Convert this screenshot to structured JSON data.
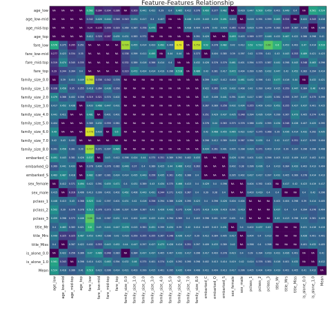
{
  "chart_data": {
    "type": "heatmap",
    "title": "Feature-Features Relationship",
    "rows": [
      "age_low",
      "age_low-mid",
      "age_mid-top",
      "age_top",
      "fare_low",
      "fare_low-mid",
      "fare_mid-top",
      "fare_top",
      "family_size_0.0",
      "family_size_1.0",
      "family_size_2.0",
      "family_size_3.0",
      "family_size_4.0",
      "family_size_5.0",
      "family_size_6.0",
      "family_size_7.0",
      "family_size_8.0",
      "embarked_C",
      "embarked_Q",
      "embarked_S",
      "sex_female",
      "sex_male",
      "pclass_1",
      "pclass_2",
      "pclass_3",
      "title_Mr",
      "title_Mrs",
      "title_Miss",
      "is_alone_0.0",
      "is_alone_1.0",
      "Mean"
    ],
    "columns": [
      "age_low",
      "age_low-mid",
      "age_mid-top",
      "age_top",
      "fare_low",
      "fare_low-mid",
      "fare_mid-top",
      "fare_top",
      "family_size_0.0",
      "family_size_1.0",
      "family_size_2.0",
      "family_size_3.0",
      "family_size_4.0",
      "family_size_5.0",
      "family_size_6.0",
      "family_size_7.0",
      "family_size_8.0",
      "embarked_C",
      "embarked_Q",
      "embarked_S",
      "sex_female",
      "sex_male",
      "pclass_1",
      "pclass_2",
      "pclass_3",
      "title_Mr",
      "title_Mrs",
      "title_Miss",
      "is_alone_0.0",
      "is_alone_1.0",
      "Mean"
    ],
    "row_tick_labels": [
      "age_low",
      "age_low-mid",
      "age_mid-top",
      "age_top",
      "fare_low",
      "fare_low-mid",
      "fare_mid-top",
      "fare_top",
      "family_size_0.0",
      "family_size_1.0",
      "family_size_2.0",
      "family_size_3.0",
      "family_size_4.0",
      "family_size_5.0",
      "family_size_6.0",
      "family_size_7.0",
      "family_size_8.0",
      "embarked_C",
      "embarked_Q",
      "embarked_S",
      "sex_female",
      "sex_male",
      "pclass_1",
      "pclass_2",
      "pclass_3",
      "title_Mr",
      "title_Mrs",
      "title_Miss",
      "is_alone_0.0",
      "is_alone_1.0",
      "Mean"
    ],
    "col_tick_labels": [
      "age_low",
      "age_low-mid",
      "age_mid-top",
      "age_top",
      "fare_low",
      "fare_low-mid",
      "fare_mid-top",
      "fare_top",
      "family_size_0.0",
      "family_size_1.0",
      "family_size_2.0",
      "family_size_3.0",
      "family_size_4.0",
      "family_size_5.0",
      "family_size_6.0",
      "family_size_7.0",
      "family_size_8.0",
      "embarked_C",
      "embarked_Q",
      "embarked_S",
      "sex_female",
      "sex_male",
      "pclass_1",
      "pclass_2",
      "pclass_3",
      "title_Mr",
      "title_Mrs",
      "title_Miss",
      "is_alone_0.0",
      "is_alone_1.0",
      "Mean"
    ],
    "colormap": "viridis",
    "value_range": [
      0,
      1
    ],
    "na_label": "NA",
    "values": [
      [
        "NA",
        "NA",
        "NA",
        "NA",
        0.562,
        0.284,
        0.304,
        0.286,
        "NA",
        0.303,
        0.441,
        0.422,
        0.39,
        0.4,
        0.465,
        0.412,
        0.376,
        0.493,
        0.377,
        0.462,
        "NA",
        0.416,
        0.447,
        0.503,
        0.459,
        0.401,
        0.449,
        0.4,
        "NA",
        0.561,
        0.524
      ],
      [
        "NA",
        "NA",
        "NA",
        "NA",
        0.342,
        0.426,
        0.444,
        0.346,
        0.343,
        0.431,
        0.417,
        0.4,
        0.407,
        "NA",
        "NA",
        0.446,
        0.435,
        0.443,
        0.439,
        0.491,
        0.403,
        "NA",
        0.416,
        0.391,
        0.399,
        0.463,
        0.324,
        "NA",
        0.422,
        0.343,
        0.418
      ],
      [
        "NA",
        "NA",
        "NA",
        "NA",
        0.24,
        0.235,
        0.309,
        0.329,
        0.369,
        0.387,
        0.358,
        0.475,
        "NA",
        "NA",
        "NA",
        0.418,
        0.404,
        0.376,
        0.43,
        0.424,
        0.365,
        0.318,
        0.429,
        0.376,
        0.374,
        0.383,
        0.325,
        0.387,
        0.356,
        "NA",
        0.386
      ],
      [
        "NA",
        "NA",
        "NA",
        "NA",
        0.412,
        0.329,
        0.287,
        0.435,
        0.431,
        0.383,
        0.372,
        "NA",
        "NA",
        "NA",
        "NA",
        "NA",
        0.391,
        0.429,
        "NA",
        "NA",
        0.493,
        0.403,
        0.369,
        0.377,
        0.446,
        0.422,
        0.467,
        0.422,
        0.386,
        0.398,
        0.41
      ],
      [
        0.576,
        0.375,
        0.265,
        0.351,
        "NA",
        "NA",
        "NA",
        "NA",
        0.735,
        0.455,
        0.414,
        0.423,
        0.492,
        0.406,
        0.79,
        "NA",
        0.759,
        0.52,
        0.378,
        0.482,
        0.42,
        0.412,
        0.52,
        0.513,
        0.66,
        0.6,
        0.453,
        0.402,
        0.47,
        0.414,
        0.519
      ],
      [
        0.277,
        0.423,
        0.334,
        0.35,
        "NA",
        "NA",
        "NA",
        "NA",
        0.338,
        0.399,
        0.411,
        0.495,
        "NA",
        0.44,
        0.44,
        "NA",
        0.373,
        "NA",
        0.404,
        0.385,
        0.39,
        0.397,
        0.42,
        0.376,
        0.41,
        0.43,
        0.443,
        0.353,
        0.489,
        0.421,
        0.423
      ],
      [
        0.319,
        0.474,
        0.345,
        0.335,
        "NA",
        "NA",
        "NA",
        "NA",
        0.332,
        0.389,
        0.416,
        0.366,
        0.414,
        0.4,
        "NA",
        "NA",
        0.432,
        0.426,
        0.376,
        0.379,
        0.461,
        0.401,
        0.394,
        0.373,
        0.387,
        0.441,
        0.398,
        0.443,
        0.348,
        0.463,
        0.396
      ],
      [
        0.29,
        0.344,
        0.364,
        0.4,
        "NA",
        "NA",
        "NA",
        "NA",
        0.323,
        0.472,
        0.424,
        0.414,
        0.419,
        0.396,
        0.518,
        "NA",
        0.486,
        0.43,
        0.381,
        0.417,
        0.472,
        0.404,
        0.399,
        0.395,
        0.432,
        0.447,
        0.42,
        0.452,
        0.383,
        0.394,
        0.414
      ],
      [
        "NA",
        0.39,
        0.411,
        0.449,
        0.765,
        0.338,
        0.342,
        0.376,
        "NA",
        "NA",
        "NA",
        "NA",
        "NA",
        "NA",
        "NA",
        "NA",
        "NA",
        0.399,
        0.447,
        0.412,
        0.404,
        0.461,
        0.432,
        0.396,
        0.41,
        0.477,
        0.416,
        0.44,
        "NA",
        0.432,
        0.421
      ],
      [
        0.328,
        0.456,
        0.35,
        0.355,
        0.418,
        0.364,
        0.436,
        0.356,
        "NA",
        "NA",
        "NA",
        "NA",
        "NA",
        "NA",
        "NA",
        "NA",
        "NA",
        0.422,
        0.365,
        0.435,
        0.432,
        0.408,
        0.42,
        0.393,
        0.402,
        0.415,
        0.359,
        0.447,
        0.384,
        0.46,
        0.403
      ],
      [
        0.479,
        0.366,
        0.402,
        0.356,
        0.319,
        0.321,
        0.374,
        0.402,
        "NA",
        "NA",
        "NA",
        "NA",
        "NA",
        "NA",
        "NA",
        "NA",
        "NA",
        0.43,
        0.406,
        0.441,
        0.391,
        0.443,
        0.417,
        0.387,
        0.433,
        0.381,
        0.355,
        0.397,
        0.437,
        0.375,
        0.399
      ],
      [
        0.417,
        0.452,
        0.438,
        "NA",
        0.433,
        0.468,
        0.447,
        0.431,
        "NA",
        "NA",
        "NA",
        "NA",
        "NA",
        "NA",
        "NA",
        "NA",
        "NA",
        0.367,
        0.389,
        0.356,
        0.432,
        0.434,
        0.355,
        0.409,
        0.423,
        0.451,
        0.355,
        0.427,
        0.437,
        0.401,
        0.415
      ],
      [
        0.441,
        0.411,
        "NA",
        "NA",
        0.481,
        "NA",
        0.401,
        0.401,
        "NA",
        "NA",
        "NA",
        "NA",
        "NA",
        "NA",
        "NA",
        "NA",
        "NA",
        0.351,
        0.429,
        0.437,
        0.435,
        0.348,
        0.394,
        0.426,
        0.424,
        0.399,
        0.367,
        0.473,
        0.405,
        0.374,
        0.401
      ],
      [
        0.404,
        "NA",
        "NA",
        "NA",
        0.389,
        0.432,
        0.359,
        0.381,
        "NA",
        "NA",
        "NA",
        "NA",
        "NA",
        "NA",
        "NA",
        "NA",
        "NA",
        0.376,
        0.44,
        0.363,
        0.375,
        0.376,
        0.386,
        0.432,
        0.395,
        0.434,
        0.348,
        0.428,
        0.407,
        0.425,
        0.395
      ],
      [
        0.49,
        "NA",
        "NA",
        "NA",
        0.778,
        0.433,
        "NA",
        0.5,
        "NA",
        "NA",
        "NA",
        "NA",
        "NA",
        "NA",
        "NA",
        "NA",
        "NA",
        0.42,
        0.468,
        0.455,
        0.465,
        0.422,
        0.427,
        0.375,
        0.368,
        0.39,
        0.436,
        0.414,
        0.432,
        0.392,
        0.435
      ],
      [
        0.42,
        0.43,
        0.401,
        "NA",
        "NA",
        "NA",
        "NA",
        "NA",
        "NA",
        "NA",
        "NA",
        "NA",
        "NA",
        "NA",
        "NA",
        "NA",
        "NA",
        0.396,
        0.412,
        0.389,
        0.416,
        0.367,
        0.394,
        0.435,
        0.4,
        0.42,
        0.417,
        0.351,
        0.417,
        0.395,
        0.404
      ],
      [
        0.391,
        0.456,
        0.381,
        0.39,
        0.727,
        0.371,
        0.397,
        0.485,
        "NA",
        "NA",
        "NA",
        "NA",
        "NA",
        "NA",
        "NA",
        "NA",
        "NA",
        0.434,
        0.361,
        0.401,
        0.405,
        0.398,
        0.424,
        0.371,
        0.403,
        0.414,
        0.39,
        0.397,
        0.396,
        0.398,
        0.408
      ],
      [
        0.491,
        0.443,
        0.381,
        0.426,
        0.537,
        "NA",
        0.43,
        0.412,
        0.398,
        0.424,
        0.44,
        0.375,
        0.351,
        0.389,
        0.392,
        0.402,
        0.433,
        "NA",
        "NA",
        "NA",
        0.426,
        0.392,
        0.401,
        0.421,
        0.396,
        0.403,
        0.412,
        0.409,
        0.417,
        0.402,
        0.411
      ],
      [
        0.369,
        0.441,
        0.433,
        "NA",
        0.378,
        0.404,
        0.376,
        0.382,
        0.446,
        0.37,
        0.4,
        0.389,
        0.425,
        0.44,
        0.466,
        0.412,
        0.363,
        "NA",
        "NA",
        "NA",
        0.402,
        0.38,
        0.396,
        0.436,
        0.4,
        0.413,
        0.384,
        0.433,
        0.403,
        0.413,
        0.404
      ],
      [
        0.463,
        0.487,
        0.418,
        "NA",
        0.482,
        0.387,
        0.381,
        0.424,
        0.414,
        0.435,
        0.443,
        0.356,
        0.435,
        0.361,
        0.452,
        0.388,
        0.4,
        "NA",
        "NA",
        "NA",
        0.395,
        0.402,
        0.427,
        0.417,
        0.397,
        0.431,
        0.405,
        0.389,
        0.378,
        0.414,
        0.413
      ],
      [
        "NA",
        0.412,
        0.371,
        0.494,
        0.422,
        0.391,
        0.455,
        0.471,
        0.4,
        0.431,
        0.389,
        0.43,
        0.434,
        0.375,
        0.466,
        0.413,
        0.4,
        0.429,
        0.4,
        0.396,
        "NA",
        "NA",
        0.404,
        0.392,
        0.401,
        "NA",
        0.417,
        0.42,
        0.423,
        0.419,
        0.417
      ],
      [
        0.415,
        "NA",
        0.316,
        0.406,
        0.413,
        0.399,
        0.401,
        0.402,
        0.462,
        0.406,
        0.443,
        0.431,
        0.344,
        0.371,
        0.423,
        0.367,
        0.4,
        0.39,
        0.38,
        0.4,
        "NA",
        "NA",
        0.403,
        0.419,
        0.4,
        0.4,
        "NA",
        "NA",
        0.4,
        0.42,
        0.396
      ],
      [
        0.448,
        0.413,
        0.43,
        0.368,
        0.523,
        0.42,
        0.397,
        0.401,
        0.431,
        0.42,
        0.416,
        0.356,
        0.394,
        0.386,
        0.426,
        0.395,
        0.423,
        0.4,
        0.396,
        0.426,
        0.404,
        0.404,
        "NA",
        "NA",
        "NA",
        0.402,
        0.404,
        0.398,
        0.39,
        0.414,
        0.405
      ],
      [
        0.502,
        0.39,
        0.376,
        0.378,
        0.513,
        0.376,
        0.373,
        0.396,
        0.397,
        0.394,
        0.387,
        0.41,
        0.426,
        0.432,
        0.375,
        0.434,
        0.372,
        0.419,
        0.436,
        0.416,
        0.391,
        0.419,
        "NA",
        "NA",
        "NA",
        0.437,
        0.4,
        0.4,
        0.394,
        0.376,
        0.404
      ],
      [
        0.459,
        0.398,
        0.373,
        0.446,
        0.66,
        0.41,
        0.387,
        0.431,
        0.41,
        0.402,
        0.433,
        0.423,
        0.424,
        0.394,
        0.369,
        0.4,
        0.403,
        0.396,
        0.401,
        0.397,
        0.401,
        0.4,
        "NA",
        "NA",
        "NA",
        0.43,
        0.413,
        0.398,
        0.419,
        0.381,
        0.409
      ],
      [
        0.4,
        0.463,
        0.383,
        0.421,
        0.6,
        0.43,
        0.441,
        0.447,
        0.476,
        0.415,
        0.381,
        0.451,
        0.399,
        0.434,
        0.39,
        0.42,
        0.414,
        0.403,
        0.413,
        0.431,
        "NA",
        0.4,
        0.402,
        0.437,
        0.43,
        "NA",
        "NA",
        "NA",
        0.421,
        0.416,
        0.419
      ],
      [
        0.449,
        0.325,
        0.325,
        0.467,
        0.453,
        0.443,
        0.398,
        0.42,
        0.416,
        0.359,
        0.355,
        0.355,
        0.367,
        0.348,
        0.436,
        0.417,
        0.39,
        0.412,
        0.384,
        0.405,
        0.417,
        "NA",
        0.404,
        0.4,
        0.413,
        "NA",
        "NA",
        "NA",
        0.426,
        0.401,
        0.401
      ],
      [
        0.4,
        "NA",
        0.387,
        0.422,
        0.402,
        0.353,
        0.443,
        0.452,
        0.44,
        0.447,
        0.397,
        0.427,
        0.473,
        0.428,
        0.414,
        0.351,
        0.397,
        0.409,
        0.433,
        0.389,
        0.42,
        "NA",
        0.398,
        0.4,
        0.398,
        "NA",
        "NA",
        "NA",
        0.401,
        0.432,
        0.405
      ],
      [
        "NA",
        0.422,
        0.356,
        0.386,
        0.47,
        0.489,
        0.348,
        0.383,
        "NA",
        0.384,
        0.437,
        0.437,
        0.405,
        0.407,
        0.432,
        0.417,
        0.396,
        0.417,
        0.403,
        0.378,
        0.423,
        0.4,
        0.39,
        0.394,
        0.419,
        0.421,
        0.426,
        0.401,
        "NA",
        "NA",
        0.41
      ],
      [
        0.561,
        0.343,
        "NA",
        0.398,
        0.414,
        0.421,
        0.463,
        0.394,
        0.432,
        0.46,
        0.375,
        0.401,
        0.374,
        0.425,
        0.392,
        0.395,
        0.398,
        0.402,
        0.413,
        0.414,
        0.419,
        0.42,
        0.414,
        0.376,
        0.381,
        0.416,
        0.401,
        0.432,
        "NA",
        "NA",
        0.412
      ],
      [
        0.524,
        0.418,
        0.386,
        0.41,
        0.519,
        0.423,
        0.396,
        0.414,
        0.421,
        0.403,
        0.399,
        0.415,
        0.401,
        0.395,
        0.435,
        0.404,
        0.408,
        0.411,
        0.404,
        0.413,
        0.417,
        0.396,
        0.405,
        0.404,
        0.409,
        0.419,
        0.401,
        0.405,
        0.41,
        0.412,
        "NA"
      ]
    ]
  }
}
